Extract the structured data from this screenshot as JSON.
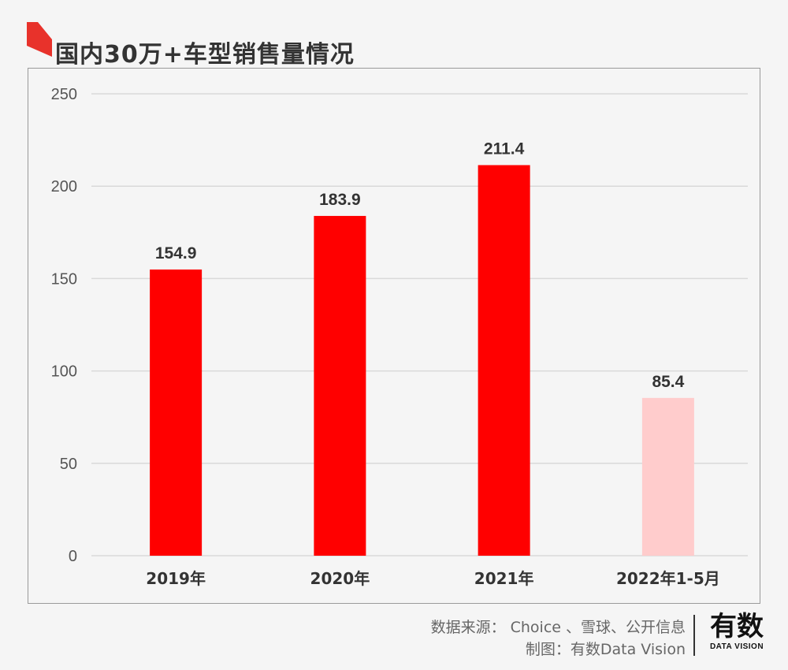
{
  "title": "国内30万+车型销售量情况",
  "colors": {
    "accent": "#e8322b",
    "bar": "#ff0000",
    "bar_partial": "#ffcccc",
    "grid": "#d9d9d9",
    "text": "#333333",
    "axis_text": "#555555"
  },
  "chart_data": {
    "type": "bar",
    "categories": [
      "2019年",
      "2020年",
      "2021年",
      "2022年1-5月"
    ],
    "values": [
      154.9,
      183.9,
      211.4,
      85.4
    ],
    "data_labels": [
      "154.9",
      "183.9",
      "211.4",
      "85.4"
    ],
    "highlight_partial_index": 3,
    "ylim": [
      0,
      250
    ],
    "yticks": [
      0,
      50,
      100,
      150,
      200,
      250
    ],
    "grid": true,
    "legend": "none",
    "xlabel": "",
    "ylabel": ""
  },
  "footer": {
    "source": "数据来源： Choice 、雪球、公开信息",
    "maker": "制图：有数Data Vision"
  },
  "logo": {
    "main": "有数",
    "sub": "DATA VISION"
  }
}
